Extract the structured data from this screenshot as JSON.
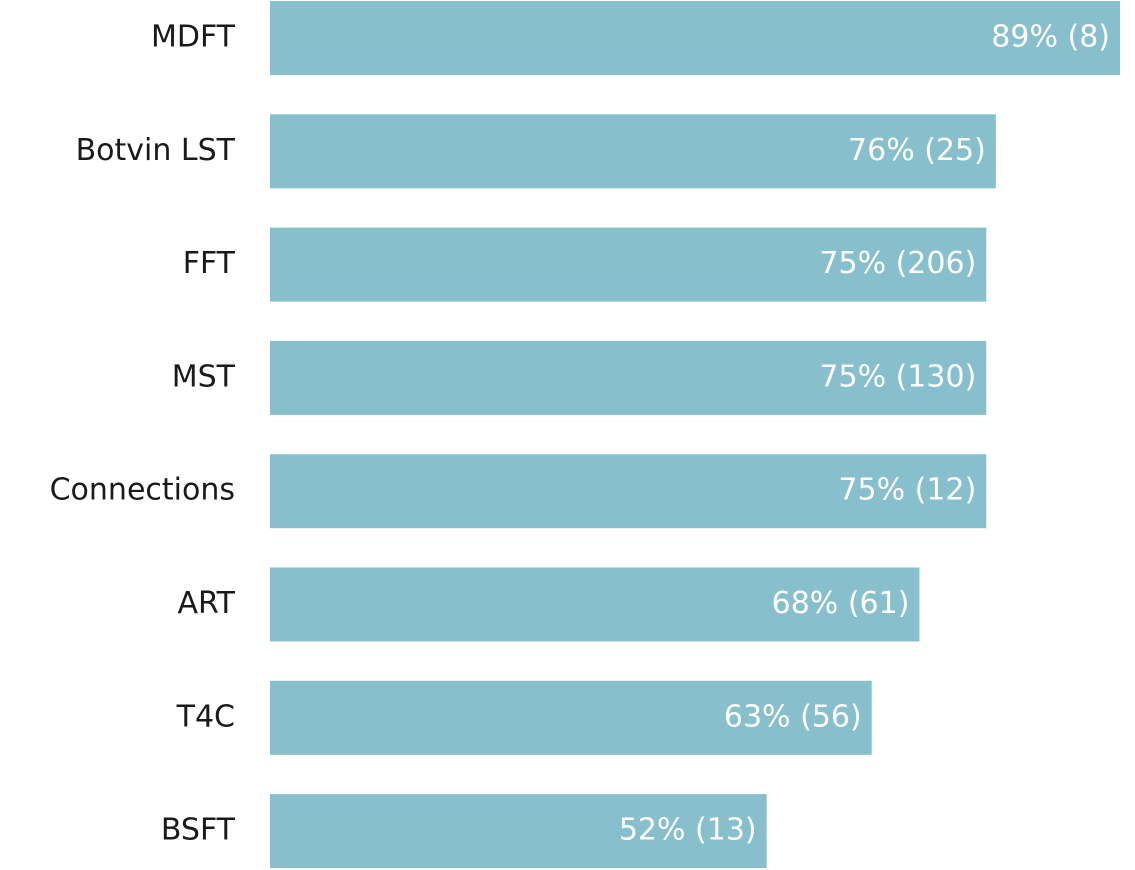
{
  "chart_data": {
    "type": "bar",
    "orientation": "horizontal",
    "categories": [
      "MDFT",
      "Botvin LST",
      "FFT",
      "MST",
      "Connections",
      "ART",
      "T4C",
      "BSFT"
    ],
    "values": [
      89,
      76,
      75,
      75,
      75,
      68,
      63,
      52
    ],
    "value_labels": [
      "89% (8)",
      "76% (25)",
      "75% (206)",
      "75% (130)",
      "75% (12)",
      "68% (61)",
      "63% (56)",
      "52% (13)"
    ],
    "color": "#88bfcc"
  }
}
